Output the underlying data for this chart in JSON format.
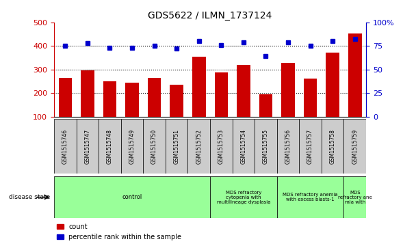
{
  "title": "GDS5622 / ILMN_1737124",
  "samples": [
    "GSM1515746",
    "GSM1515747",
    "GSM1515748",
    "GSM1515749",
    "GSM1515750",
    "GSM1515751",
    "GSM1515752",
    "GSM1515753",
    "GSM1515754",
    "GSM1515755",
    "GSM1515756",
    "GSM1515757",
    "GSM1515758",
    "GSM1515759"
  ],
  "counts": [
    265,
    295,
    250,
    244,
    265,
    236,
    355,
    288,
    320,
    195,
    327,
    260,
    372,
    453
  ],
  "percentiles": [
    75,
    78,
    73,
    73,
    75,
    72,
    80,
    76,
    79,
    64,
    79,
    75,
    80,
    82
  ],
  "bar_color": "#cc0000",
  "dot_color": "#0000cc",
  "ylim_left": [
    100,
    500
  ],
  "ylim_right": [
    0,
    100
  ],
  "yticks_left": [
    100,
    200,
    300,
    400,
    500
  ],
  "yticks_right": [
    0,
    25,
    50,
    75,
    100
  ],
  "disease_groups": [
    {
      "label": "control",
      "start": 0,
      "end": 7
    },
    {
      "label": "MDS refractory\ncytopenia with\nmultilineage dysplasia",
      "start": 7,
      "end": 10
    },
    {
      "label": "MDS refractory anemia\nwith excess blasts-1",
      "start": 10,
      "end": 13
    },
    {
      "label": "MDS\nrefractory ane\nmia with",
      "start": 13,
      "end": 14
    }
  ],
  "disease_color": "#99ff99",
  "sample_bg_color": "#cccccc",
  "background_color": "#ffffff",
  "tick_label_color_left": "#cc0000",
  "tick_label_color_right": "#0000cc",
  "bar_width": 0.6,
  "grid_yticks": [
    200,
    300,
    400
  ]
}
